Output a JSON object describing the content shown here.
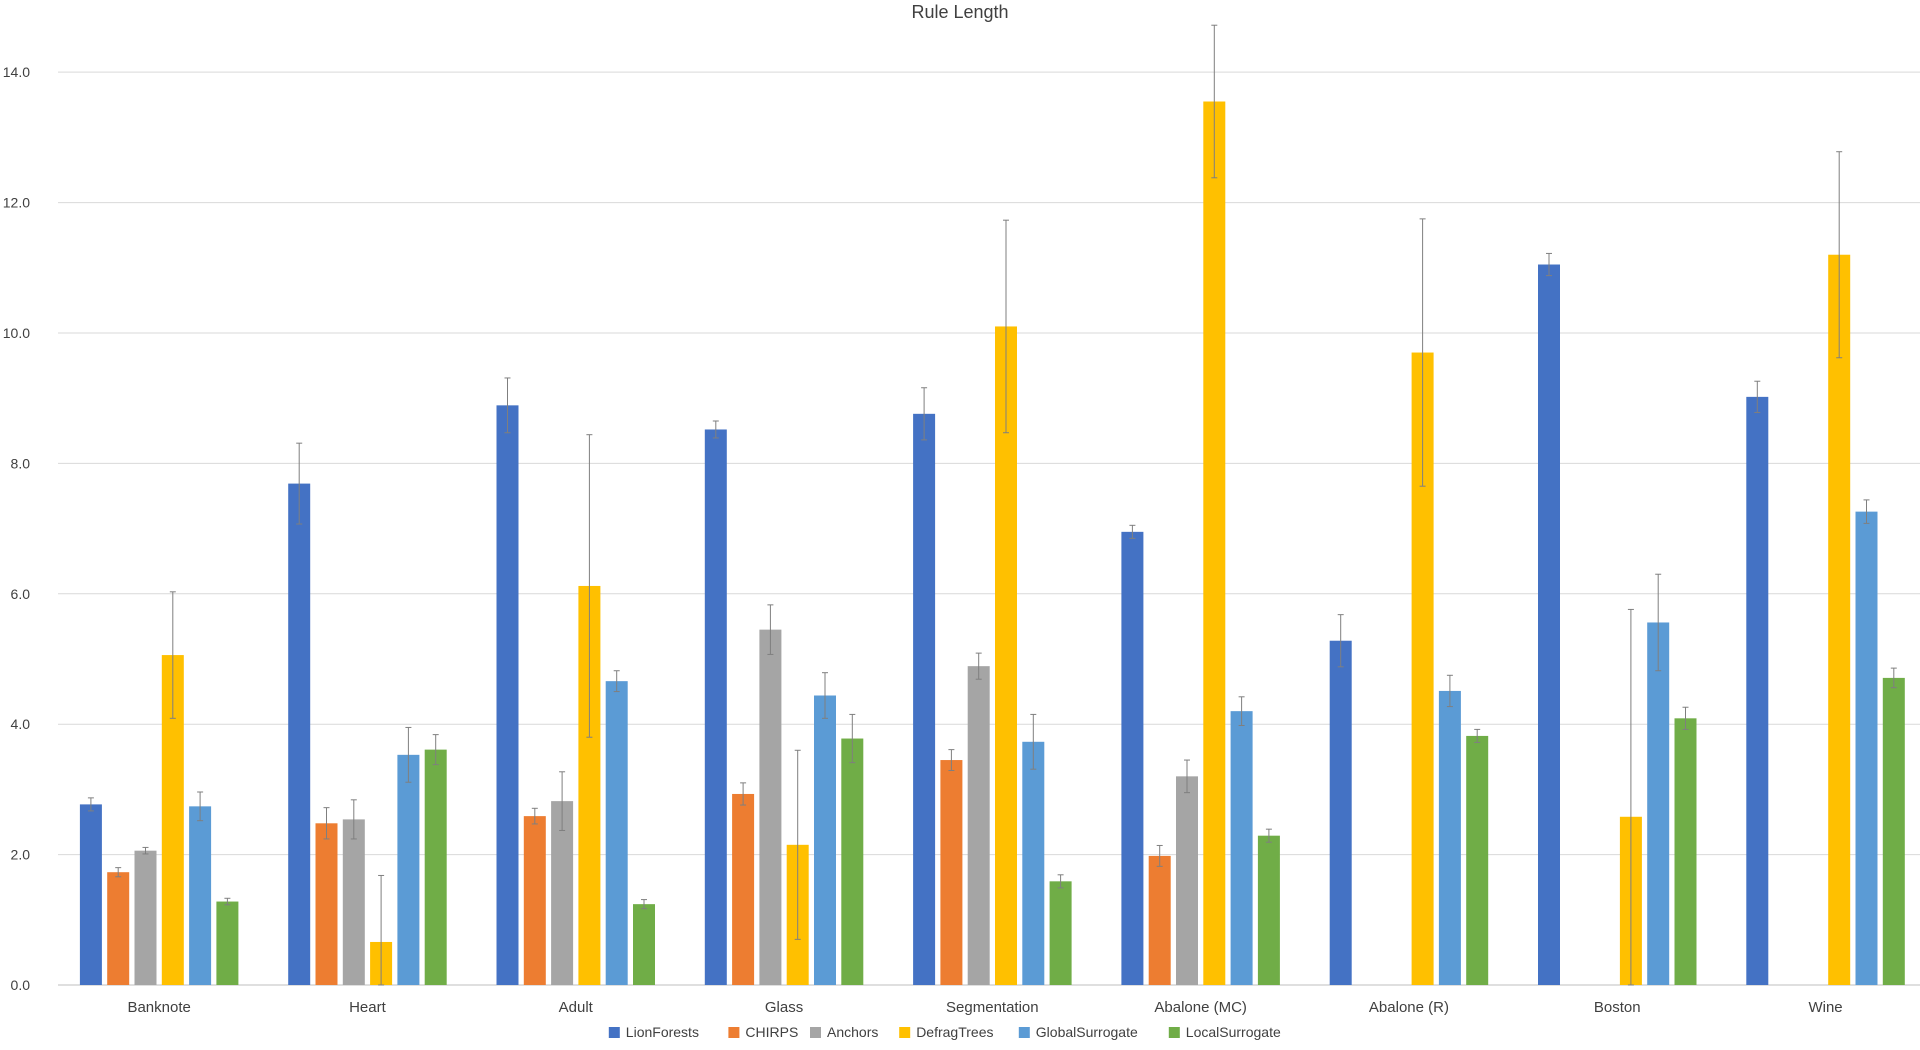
{
  "chart_data": {
    "type": "bar",
    "title": "Rule Length",
    "xlabel": "",
    "ylabel": "",
    "ylim": [
      0,
      14.8
    ],
    "yticks": [
      0,
      2,
      4,
      6,
      8,
      10,
      12,
      14
    ],
    "ytick_labels": [
      "0.0",
      "2.0",
      "4.0",
      "6.0",
      "8.0",
      "10.0",
      "12.0",
      "14.0"
    ],
    "grid": true,
    "legend_position": "bottom",
    "categories": [
      "Banknote",
      "Heart",
      "Adult",
      "Glass",
      "Segmentation",
      "Abalone (MC)",
      "Abalone (R)",
      "Boston",
      "Wine"
    ],
    "series": [
      {
        "name": "LionForests",
        "color": "#4472C4",
        "values": [
          2.77,
          7.69,
          8.89,
          8.52,
          8.76,
          6.95,
          5.28,
          11.05,
          9.02
        ],
        "errors": [
          0.1,
          0.62,
          0.42,
          0.13,
          0.4,
          0.1,
          0.4,
          0.17,
          0.24
        ]
      },
      {
        "name": "CHIRPS",
        "color": "#ED7D31",
        "values": [
          1.73,
          2.48,
          2.59,
          2.93,
          3.45,
          1.98,
          null,
          null,
          null
        ],
        "errors": [
          0.07,
          0.24,
          0.12,
          0.17,
          0.16,
          0.16,
          null,
          null,
          null
        ]
      },
      {
        "name": "Anchors",
        "color": "#A5A5A5",
        "values": [
          2.06,
          2.54,
          2.82,
          5.45,
          4.89,
          3.2,
          null,
          null,
          null
        ],
        "errors": [
          0.05,
          0.3,
          0.45,
          0.38,
          0.2,
          0.25,
          null,
          null,
          null
        ]
      },
      {
        "name": "DefragTrees",
        "color": "#FFC000",
        "values": [
          5.06,
          0.66,
          6.12,
          2.15,
          10.1,
          13.55,
          9.7,
          2.58,
          11.2
        ],
        "errors": [
          0.97,
          1.02,
          2.32,
          1.45,
          1.63,
          1.17,
          2.05,
          3.18,
          1.58
        ]
      },
      {
        "name": "GlobalSurrogate",
        "color": "#5B9BD5",
        "values": [
          2.74,
          3.53,
          4.66,
          4.44,
          3.73,
          4.2,
          4.51,
          5.56,
          7.26
        ],
        "errors": [
          0.22,
          0.42,
          0.16,
          0.35,
          0.42,
          0.22,
          0.24,
          0.74,
          0.18
        ]
      },
      {
        "name": "LocalSurrogate",
        "color": "#70AD47",
        "values": [
          1.28,
          3.61,
          1.24,
          3.78,
          1.59,
          2.29,
          3.82,
          4.09,
          4.71
        ],
        "errors": [
          0.05,
          0.23,
          0.07,
          0.37,
          0.1,
          0.1,
          0.1,
          0.17,
          0.15
        ]
      }
    ]
  }
}
